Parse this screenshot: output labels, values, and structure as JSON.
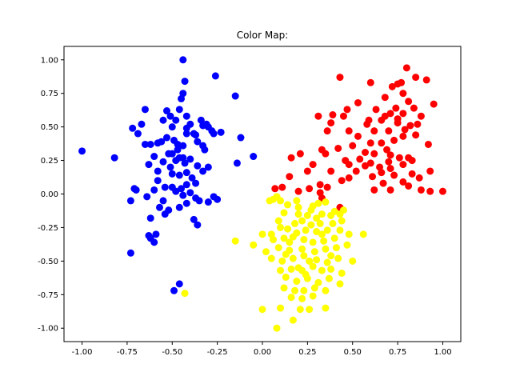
{
  "chart_data": {
    "type": "scatter",
    "title": "Color Map:",
    "xlabel": "",
    "ylabel": "",
    "xlim": [
      -1.1,
      1.1
    ],
    "ylim": [
      -1.1,
      1.1
    ],
    "xticks": [
      "-1.00",
      "-0.75",
      "-0.50",
      "-0.25",
      "0.00",
      "0.25",
      "0.50",
      "0.75",
      "1.00"
    ],
    "yticks": [
      "-1.00",
      "-0.75",
      "-0.50",
      "-0.25",
      "0.00",
      "0.25",
      "0.50",
      "0.75",
      "1.00"
    ],
    "grid": false,
    "series": [
      {
        "color": "#0000ff",
        "points": [
          [
            -1.0,
            0.32
          ],
          [
            -0.82,
            0.27
          ],
          [
            -0.72,
            0.49
          ],
          [
            -0.69,
            0.45
          ],
          [
            -0.67,
            0.52
          ],
          [
            -0.65,
            0.63
          ],
          [
            -0.62,
            0.37
          ],
          [
            -0.58,
            0.38
          ],
          [
            -0.55,
            0.55
          ],
          [
            -0.53,
            0.62
          ],
          [
            -0.51,
            0.58
          ],
          [
            -0.5,
            0.5
          ],
          [
            -0.48,
            0.55
          ],
          [
            -0.46,
            0.63
          ],
          [
            -0.45,
            0.71
          ],
          [
            -0.44,
            0.75
          ],
          [
            -0.44,
            1.0
          ],
          [
            -0.43,
            0.84
          ],
          [
            -0.42,
            0.58
          ],
          [
            -0.42,
            0.45
          ],
          [
            -0.4,
            0.52
          ],
          [
            -0.38,
            0.45
          ],
          [
            -0.36,
            0.39
          ],
          [
            -0.34,
            0.55
          ],
          [
            -0.33,
            0.51
          ],
          [
            -0.31,
            0.52
          ],
          [
            -0.32,
            0.33
          ],
          [
            -0.28,
            0.47
          ],
          [
            -0.26,
            0.88
          ],
          [
            -0.23,
            0.46
          ],
          [
            -0.15,
            0.73
          ],
          [
            -0.12,
            0.42
          ],
          [
            -0.14,
            0.23
          ],
          [
            -0.05,
            0.28
          ],
          [
            -0.56,
            0.39
          ],
          [
            -0.49,
            0.4
          ],
          [
            -0.47,
            0.37
          ],
          [
            -0.44,
            0.36
          ],
          [
            -0.52,
            0.3
          ],
          [
            -0.48,
            0.25
          ],
          [
            -0.46,
            0.27
          ],
          [
            -0.43,
            0.23
          ],
          [
            -0.4,
            0.26
          ],
          [
            -0.36,
            0.21
          ],
          [
            -0.33,
            0.17
          ],
          [
            -0.3,
            0.2
          ],
          [
            -0.55,
            0.24
          ],
          [
            -0.51,
            0.2
          ],
          [
            -0.58,
            0.17
          ],
          [
            -0.6,
            0.28
          ],
          [
            -0.63,
            0.22
          ],
          [
            -0.58,
            0.1
          ],
          [
            -0.54,
            0.05
          ],
          [
            -0.5,
            0.15
          ],
          [
            -0.46,
            0.14
          ],
          [
            -0.42,
            0.16
          ],
          [
            -0.39,
            0.12
          ],
          [
            -0.37,
            0.08
          ],
          [
            -0.42,
            0.07
          ],
          [
            -0.45,
            0.04
          ],
          [
            -0.48,
            0.02
          ],
          [
            -0.5,
            0.05
          ],
          [
            -0.44,
            -0.01
          ],
          [
            -0.4,
            0.01
          ],
          [
            -0.37,
            -0.03
          ],
          [
            -0.7,
            0.03
          ],
          [
            -0.71,
            0.04
          ],
          [
            -0.73,
            -0.05
          ],
          [
            -0.64,
            -0.02
          ],
          [
            -0.6,
            0.03
          ],
          [
            -0.55,
            -0.05
          ],
          [
            -0.57,
            -0.1
          ],
          [
            -0.52,
            -0.12
          ],
          [
            -0.46,
            -0.1
          ],
          [
            -0.42,
            -0.07
          ],
          [
            -0.35,
            -0.05
          ],
          [
            -0.3,
            -0.06
          ],
          [
            -0.27,
            -0.02
          ],
          [
            -0.25,
            -0.04
          ],
          [
            -0.62,
            -0.18
          ],
          [
            -0.54,
            -0.15
          ],
          [
            -0.38,
            -0.19
          ],
          [
            -0.36,
            -0.23
          ],
          [
            -0.59,
            -0.3
          ],
          [
            -0.63,
            -0.31
          ],
          [
            -0.62,
            -0.33
          ],
          [
            -0.6,
            -0.36
          ],
          [
            -0.73,
            -0.44
          ],
          [
            -0.46,
            -0.67
          ],
          [
            -0.49,
            -0.72
          ],
          [
            -0.47,
            0.33
          ],
          [
            -0.5,
            0.3
          ],
          [
            -0.33,
            0.36
          ],
          [
            -0.27,
            0.45
          ],
          [
            -0.44,
            0.27
          ],
          [
            -0.37,
            0.44
          ],
          [
            -0.53,
            0.42
          ],
          [
            -0.42,
            0.49
          ],
          [
            -0.3,
            0.5
          ],
          [
            -0.65,
            0.37
          ]
        ]
      },
      {
        "color": "#ff0000",
        "points": [
          [
            0.8,
            0.94
          ],
          [
            0.6,
            0.83
          ],
          [
            0.75,
            0.82
          ],
          [
            0.77,
            0.83
          ],
          [
            0.85,
            0.87
          ],
          [
            0.91,
            0.85
          ],
          [
            0.43,
            0.87
          ],
          [
            0.72,
            0.8
          ],
          [
            0.78,
            0.75
          ],
          [
            0.68,
            0.72
          ],
          [
            0.81,
            0.69
          ],
          [
            0.84,
            0.64
          ],
          [
            0.95,
            0.67
          ],
          [
            0.74,
            0.64
          ],
          [
            0.53,
            0.68
          ],
          [
            0.47,
            0.63
          ],
          [
            0.63,
            0.63
          ],
          [
            0.71,
            0.6
          ],
          [
            0.78,
            0.6
          ],
          [
            0.88,
            0.58
          ],
          [
            0.45,
            0.58
          ],
          [
            0.39,
            0.59
          ],
          [
            0.31,
            0.58
          ],
          [
            0.59,
            0.55
          ],
          [
            0.66,
            0.55
          ],
          [
            0.75,
            0.53
          ],
          [
            0.82,
            0.51
          ],
          [
            0.36,
            0.47
          ],
          [
            0.38,
            0.53
          ],
          [
            0.48,
            0.47
          ],
          [
            0.62,
            0.47
          ],
          [
            0.7,
            0.47
          ],
          [
            0.79,
            0.48
          ],
          [
            0.86,
            0.52
          ],
          [
            0.85,
            0.44
          ],
          [
            0.92,
            0.37
          ],
          [
            0.53,
            0.43
          ],
          [
            0.6,
            0.38
          ],
          [
            0.66,
            0.38
          ],
          [
            0.73,
            0.4
          ],
          [
            0.78,
            0.43
          ],
          [
            0.5,
            0.36
          ],
          [
            0.42,
            0.34
          ],
          [
            0.33,
            0.33
          ],
          [
            0.21,
            0.3
          ],
          [
            0.35,
            0.3
          ],
          [
            0.62,
            0.3
          ],
          [
            0.71,
            0.29
          ],
          [
            0.81,
            0.27
          ],
          [
            0.16,
            0.27
          ],
          [
            0.54,
            0.26
          ],
          [
            0.6,
            0.23
          ],
          [
            0.7,
            0.24
          ],
          [
            0.76,
            0.27
          ],
          [
            0.83,
            0.25
          ],
          [
            0.48,
            0.22
          ],
          [
            0.57,
            0.21
          ],
          [
            0.65,
            0.2
          ],
          [
            0.71,
            0.19
          ],
          [
            0.78,
            0.22
          ],
          [
            0.93,
            0.17
          ],
          [
            0.25,
            0.17
          ],
          [
            0.38,
            0.17
          ],
          [
            0.52,
            0.17
          ],
          [
            0.66,
            0.16
          ],
          [
            0.83,
            0.15
          ],
          [
            0.73,
            0.14
          ],
          [
            0.61,
            0.13
          ],
          [
            0.48,
            0.12
          ],
          [
            0.78,
            0.09
          ],
          [
            0.87,
            0.12
          ],
          [
            0.44,
            0.1
          ],
          [
            0.67,
            0.08
          ],
          [
            0.81,
            0.06
          ],
          [
            0.32,
            0.07
          ],
          [
            0.11,
            0.05
          ],
          [
            0.07,
            0.04
          ],
          [
            0.26,
            0.04
          ],
          [
            0.62,
            0.03
          ],
          [
            0.32,
            0.01
          ],
          [
            0.93,
            0.02
          ],
          [
            1.0,
            0.02
          ],
          [
            0.88,
            0.03
          ],
          [
            0.71,
            0.03
          ],
          [
            0.36,
            0.05
          ],
          [
            0.2,
            0.02
          ],
          [
            0.33,
            -0.03
          ],
          [
            0.43,
            -0.1
          ],
          [
            0.15,
            0.13
          ],
          [
            0.58,
            0.52
          ],
          [
            0.46,
            0.25
          ],
          [
            0.28,
            0.22
          ],
          [
            0.57,
            0.31
          ],
          [
            0.69,
            0.33
          ],
          [
            0.75,
            0.56
          ],
          [
            0.68,
            0.58
          ]
        ]
      },
      {
        "color": "#ffff00",
        "points": [
          [
            0.08,
            -0.02
          ],
          [
            0.06,
            -0.04
          ],
          [
            0.04,
            -0.05
          ],
          [
            0.1,
            -0.05
          ],
          [
            0.14,
            -0.08
          ],
          [
            0.19,
            -0.05
          ],
          [
            0.28,
            -0.09
          ],
          [
            0.31,
            -0.07
          ],
          [
            0.35,
            -0.06
          ],
          [
            0.4,
            -0.13
          ],
          [
            0.45,
            -0.12
          ],
          [
            0.38,
            -0.16
          ],
          [
            0.43,
            -0.15
          ],
          [
            0.33,
            -0.15
          ],
          [
            0.3,
            -0.18
          ],
          [
            0.25,
            -0.16
          ],
          [
            0.2,
            -0.15
          ],
          [
            0.12,
            -0.14
          ],
          [
            0.18,
            -0.22
          ],
          [
            0.22,
            -0.2
          ],
          [
            0.27,
            -0.23
          ],
          [
            0.32,
            -0.22
          ],
          [
            0.39,
            -0.22
          ],
          [
            0.44,
            -0.2
          ],
          [
            0.36,
            -0.27
          ],
          [
            0.3,
            -0.28
          ],
          [
            0.24,
            -0.27
          ],
          [
            0.19,
            -0.29
          ],
          [
            0.14,
            -0.26
          ],
          [
            0.1,
            -0.25
          ],
          [
            0.05,
            -0.3
          ],
          [
            0.0,
            -0.3
          ],
          [
            0.12,
            -0.33
          ],
          [
            0.17,
            -0.32
          ],
          [
            0.23,
            -0.34
          ],
          [
            0.28,
            -0.36
          ],
          [
            0.34,
            -0.35
          ],
          [
            0.4,
            -0.33
          ],
          [
            0.48,
            -0.3
          ],
          [
            0.56,
            -0.3
          ],
          [
            0.43,
            -0.27
          ],
          [
            0.06,
            -0.34
          ],
          [
            -0.05,
            -0.38
          ],
          [
            -0.15,
            -0.35
          ],
          [
            0.02,
            -0.43
          ],
          [
            0.09,
            -0.4
          ],
          [
            0.15,
            -0.42
          ],
          [
            0.22,
            -0.41
          ],
          [
            0.29,
            -0.43
          ],
          [
            0.35,
            -0.41
          ],
          [
            0.41,
            -0.4
          ],
          [
            0.47,
            -0.38
          ],
          [
            0.5,
            -0.5
          ],
          [
            0.05,
            -0.48
          ],
          [
            0.11,
            -0.5
          ],
          [
            0.17,
            -0.48
          ],
          [
            0.23,
            -0.46
          ],
          [
            0.3,
            -0.49
          ],
          [
            0.36,
            -0.51
          ],
          [
            0.42,
            -0.48
          ],
          [
            0.1,
            -0.57
          ],
          [
            0.16,
            -0.56
          ],
          [
            0.22,
            -0.57
          ],
          [
            0.28,
            -0.54
          ],
          [
            0.33,
            -0.57
          ],
          [
            0.38,
            -0.56
          ],
          [
            0.44,
            -0.59
          ],
          [
            0.13,
            -0.62
          ],
          [
            0.19,
            -0.65
          ],
          [
            0.25,
            -0.63
          ],
          [
            0.31,
            -0.66
          ],
          [
            0.37,
            -0.63
          ],
          [
            0.43,
            -0.67
          ],
          [
            0.12,
            -0.7
          ],
          [
            0.18,
            -0.72
          ],
          [
            0.23,
            -0.72
          ],
          [
            0.29,
            -0.7
          ],
          [
            0.35,
            -0.72
          ],
          [
            0.16,
            -0.77
          ],
          [
            0.22,
            -0.78
          ],
          [
            0.28,
            -0.76
          ],
          [
            0.1,
            -0.85
          ],
          [
            0.0,
            -0.86
          ],
          [
            0.21,
            -0.86
          ],
          [
            0.26,
            -0.86
          ],
          [
            0.35,
            -0.85
          ],
          [
            0.17,
            -0.94
          ],
          [
            0.08,
            -1.0
          ],
          [
            0.2,
            -0.55
          ],
          [
            0.26,
            -0.5
          ],
          [
            0.15,
            -0.36
          ],
          [
            0.33,
            -0.3
          ],
          [
            0.2,
            -0.1
          ],
          [
            0.27,
            -0.12
          ],
          [
            0.09,
            -0.2
          ],
          [
            0.38,
            -0.46
          ],
          [
            0.24,
            -0.6
          ],
          [
            0.13,
            -0.45
          ],
          [
            -0.43,
            -0.74
          ]
        ]
      }
    ]
  }
}
